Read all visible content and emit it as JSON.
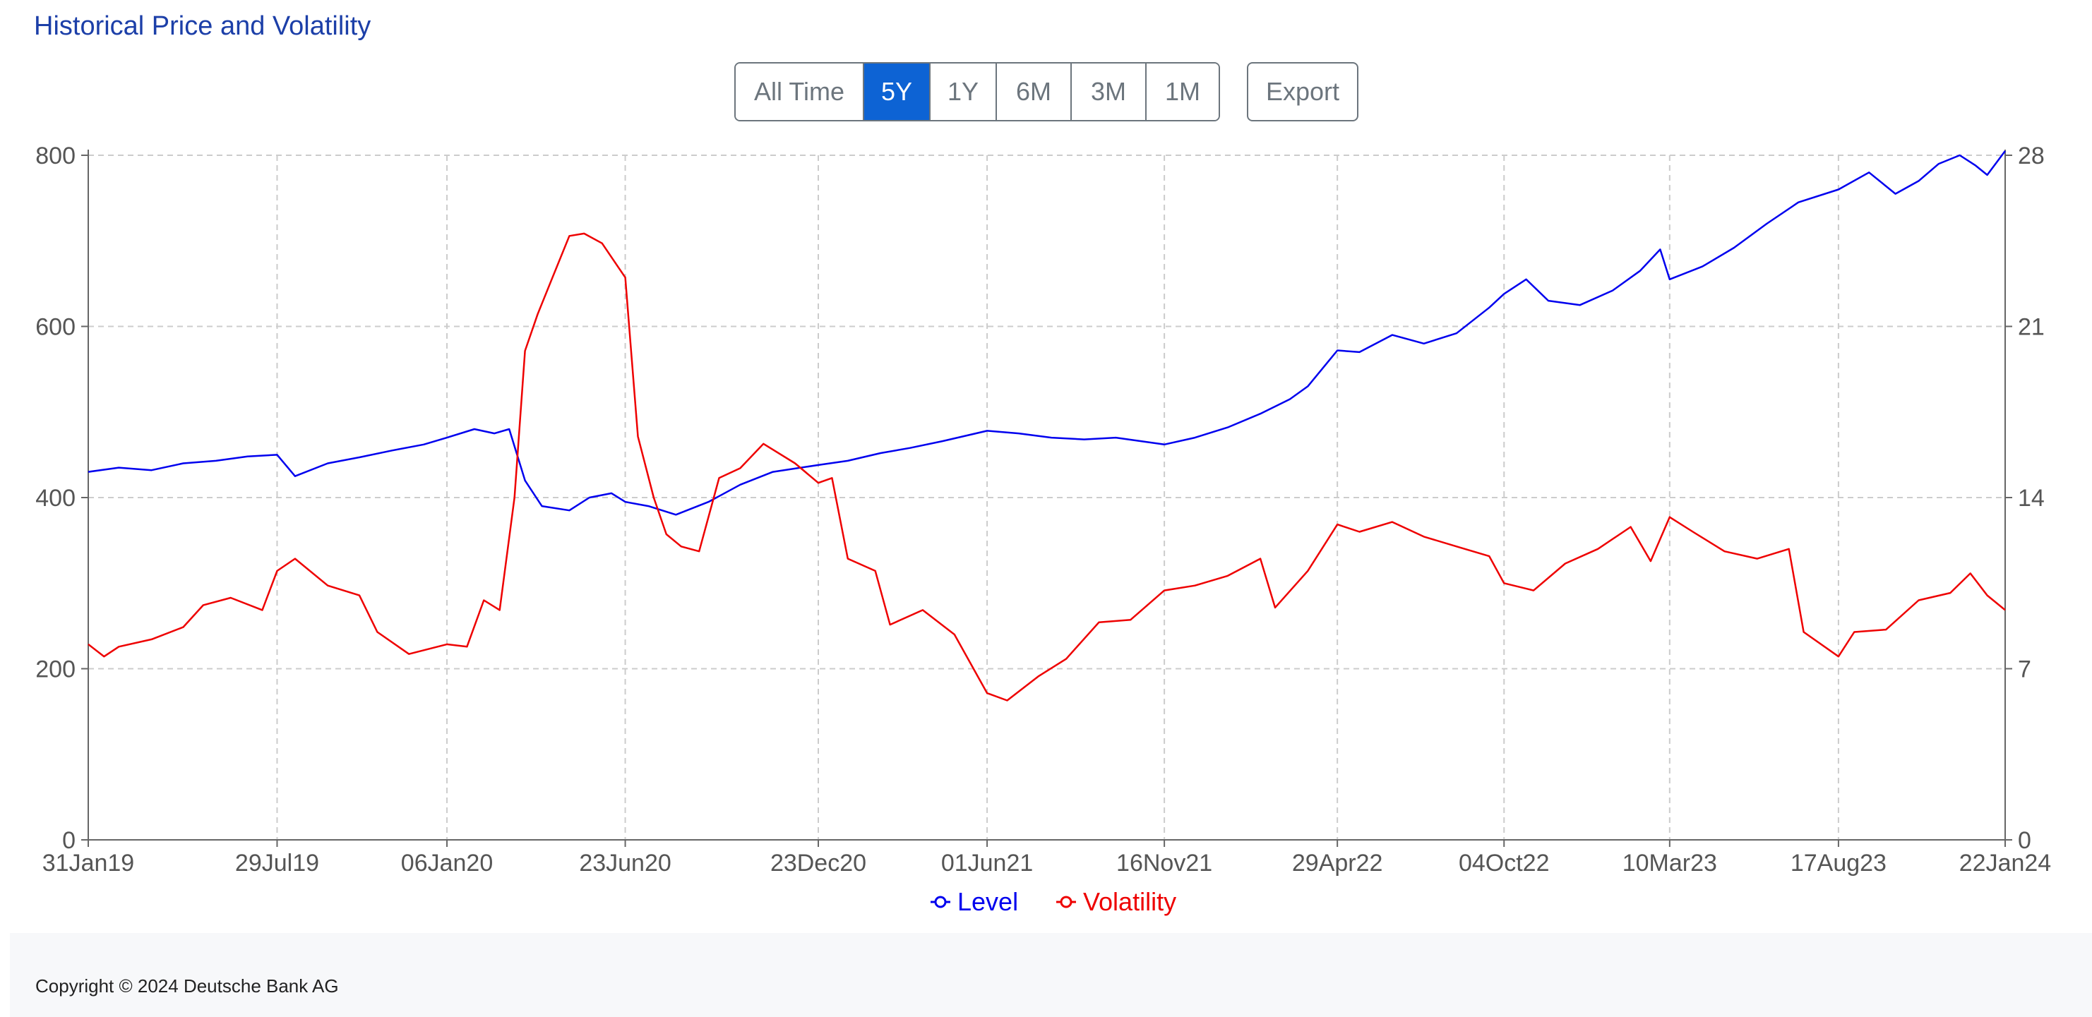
{
  "page": {
    "title": "Historical Price and Volatility"
  },
  "toolbar": {
    "ranges": [
      {
        "label": "All Time",
        "active": false
      },
      {
        "label": "5Y",
        "active": true
      },
      {
        "label": "1Y",
        "active": false
      },
      {
        "label": "6M",
        "active": false
      },
      {
        "label": "3M",
        "active": false
      },
      {
        "label": "1M",
        "active": false
      }
    ],
    "export_label": "Export"
  },
  "chart_data": {
    "type": "line",
    "title": "",
    "xlabel": "",
    "ylabel": "",
    "y2label": "",
    "x_ticks": [
      "31Jan19",
      "29Jul19",
      "06Jan20",
      "23Jun20",
      "23Dec20",
      "01Jun21",
      "16Nov21",
      "29Apr22",
      "04Oct22",
      "10Mar23",
      "17Aug23",
      "22Jan24"
    ],
    "xlim": [
      "2019-01-31",
      "2024-01-22"
    ],
    "ylim": [
      0,
      800
    ],
    "y_ticks": [
      0,
      200,
      400,
      600,
      800
    ],
    "y2lim": [
      0,
      28
    ],
    "y2_ticks": [
      0,
      7,
      14,
      21,
      28
    ],
    "grid": true,
    "legend_position": "bottom-center",
    "series": [
      {
        "name": "Level",
        "axis": "left",
        "color": "#0000ee",
        "points": [
          [
            "2019-01-31",
            430
          ],
          [
            "2019-03-01",
            435
          ],
          [
            "2019-04-01",
            432
          ],
          [
            "2019-05-01",
            440
          ],
          [
            "2019-06-01",
            443
          ],
          [
            "2019-07-01",
            448
          ],
          [
            "2019-07-29",
            450
          ],
          [
            "2019-08-15",
            425
          ],
          [
            "2019-09-15",
            440
          ],
          [
            "2019-10-15",
            447
          ],
          [
            "2019-11-15",
            455
          ],
          [
            "2019-12-15",
            462
          ],
          [
            "2020-01-06",
            470
          ],
          [
            "2020-02-01",
            480
          ],
          [
            "2020-02-20",
            475
          ],
          [
            "2020-03-05",
            480
          ],
          [
            "2020-03-20",
            420
          ],
          [
            "2020-04-05",
            390
          ],
          [
            "2020-05-01",
            385
          ],
          [
            "2020-05-20",
            400
          ],
          [
            "2020-06-10",
            405
          ],
          [
            "2020-06-23",
            395
          ],
          [
            "2020-07-15",
            390
          ],
          [
            "2020-08-10",
            380
          ],
          [
            "2020-09-10",
            395
          ],
          [
            "2020-10-10",
            415
          ],
          [
            "2020-11-10",
            430
          ],
          [
            "2020-12-23",
            438
          ],
          [
            "2021-01-20",
            443
          ],
          [
            "2021-02-20",
            452
          ],
          [
            "2021-03-20",
            458
          ],
          [
            "2021-04-20",
            466
          ],
          [
            "2021-06-01",
            478
          ],
          [
            "2021-07-01",
            475
          ],
          [
            "2021-08-01",
            470
          ],
          [
            "2021-09-01",
            468
          ],
          [
            "2021-10-01",
            470
          ],
          [
            "2021-11-16",
            462
          ],
          [
            "2021-12-15",
            470
          ],
          [
            "2022-01-15",
            482
          ],
          [
            "2022-02-15",
            498
          ],
          [
            "2022-03-15",
            515
          ],
          [
            "2022-04-01",
            530
          ],
          [
            "2022-04-29",
            572
          ],
          [
            "2022-05-20",
            570
          ],
          [
            "2022-06-20",
            590
          ],
          [
            "2022-07-20",
            580
          ],
          [
            "2022-08-20",
            592
          ],
          [
            "2022-09-20",
            622
          ],
          [
            "2022-10-04",
            638
          ],
          [
            "2022-10-25",
            655
          ],
          [
            "2022-11-15",
            630
          ],
          [
            "2022-12-15",
            625
          ],
          [
            "2023-01-15",
            642
          ],
          [
            "2023-02-10",
            665
          ],
          [
            "2023-03-01",
            690
          ],
          [
            "2023-03-10",
            655
          ],
          [
            "2023-04-10",
            670
          ],
          [
            "2023-05-10",
            692
          ],
          [
            "2023-06-10",
            720
          ],
          [
            "2023-07-10",
            745
          ],
          [
            "2023-08-17",
            760
          ],
          [
            "2023-09-15",
            780
          ],
          [
            "2023-10-10",
            755
          ],
          [
            "2023-11-01",
            770
          ],
          [
            "2023-11-20",
            790
          ],
          [
            "2023-12-10",
            800
          ],
          [
            "2023-12-25",
            788
          ],
          [
            "2024-01-05",
            777
          ],
          [
            "2024-01-22",
            805
          ]
        ]
      },
      {
        "name": "Volatility",
        "axis": "right",
        "color": "#ee0000",
        "points": [
          [
            "2019-01-31",
            8.0
          ],
          [
            "2019-02-15",
            7.5
          ],
          [
            "2019-03-01",
            7.9
          ],
          [
            "2019-04-01",
            8.2
          ],
          [
            "2019-05-01",
            8.7
          ],
          [
            "2019-05-20",
            9.6
          ],
          [
            "2019-06-15",
            9.9
          ],
          [
            "2019-07-15",
            9.4
          ],
          [
            "2019-07-29",
            11.0
          ],
          [
            "2019-08-15",
            11.5
          ],
          [
            "2019-09-15",
            10.4
          ],
          [
            "2019-10-15",
            10.0
          ],
          [
            "2019-11-01",
            8.5
          ],
          [
            "2019-12-01",
            7.6
          ],
          [
            "2020-01-06",
            8.0
          ],
          [
            "2020-01-25",
            7.9
          ],
          [
            "2020-02-10",
            9.8
          ],
          [
            "2020-02-25",
            9.4
          ],
          [
            "2020-03-10",
            14.0
          ],
          [
            "2020-03-20",
            20.0
          ],
          [
            "2020-04-01",
            21.5
          ],
          [
            "2020-04-15",
            23.0
          ],
          [
            "2020-05-01",
            24.7
          ],
          [
            "2020-05-15",
            24.8
          ],
          [
            "2020-06-01",
            24.4
          ],
          [
            "2020-06-23",
            23.0
          ],
          [
            "2020-07-05",
            16.5
          ],
          [
            "2020-07-20",
            14.0
          ],
          [
            "2020-08-01",
            12.5
          ],
          [
            "2020-08-15",
            12.0
          ],
          [
            "2020-09-01",
            11.8
          ],
          [
            "2020-09-20",
            14.8
          ],
          [
            "2020-10-10",
            15.2
          ],
          [
            "2020-11-01",
            16.2
          ],
          [
            "2020-12-01",
            15.4
          ],
          [
            "2020-12-23",
            14.6
          ],
          [
            "2021-01-05",
            14.8
          ],
          [
            "2021-01-20",
            11.5
          ],
          [
            "2021-02-15",
            11.0
          ],
          [
            "2021-03-01",
            8.8
          ],
          [
            "2021-04-01",
            9.4
          ],
          [
            "2021-05-01",
            8.4
          ],
          [
            "2021-06-01",
            6.0
          ],
          [
            "2021-06-20",
            5.7
          ],
          [
            "2021-07-20",
            6.7
          ],
          [
            "2021-08-15",
            7.4
          ],
          [
            "2021-09-15",
            8.9
          ],
          [
            "2021-10-15",
            9.0
          ],
          [
            "2021-11-16",
            10.2
          ],
          [
            "2021-12-15",
            10.4
          ],
          [
            "2022-01-15",
            10.8
          ],
          [
            "2022-02-15",
            11.5
          ],
          [
            "2022-03-01",
            9.5
          ],
          [
            "2022-04-01",
            11.0
          ],
          [
            "2022-04-29",
            12.9
          ],
          [
            "2022-05-20",
            12.6
          ],
          [
            "2022-06-20",
            13.0
          ],
          [
            "2022-07-20",
            12.4
          ],
          [
            "2022-08-20",
            12.0
          ],
          [
            "2022-09-20",
            11.6
          ],
          [
            "2022-10-04",
            10.5
          ],
          [
            "2022-11-01",
            10.2
          ],
          [
            "2022-12-01",
            11.3
          ],
          [
            "2023-01-01",
            11.9
          ],
          [
            "2023-02-01",
            12.8
          ],
          [
            "2023-02-20",
            11.4
          ],
          [
            "2023-03-10",
            13.2
          ],
          [
            "2023-04-01",
            12.6
          ],
          [
            "2023-05-01",
            11.8
          ],
          [
            "2023-06-01",
            11.5
          ],
          [
            "2023-07-01",
            11.9
          ],
          [
            "2023-07-15",
            8.5
          ],
          [
            "2023-08-17",
            7.5
          ],
          [
            "2023-09-01",
            8.5
          ],
          [
            "2023-10-01",
            8.6
          ],
          [
            "2023-11-01",
            9.8
          ],
          [
            "2023-12-01",
            10.1
          ],
          [
            "2023-12-20",
            10.9
          ],
          [
            "2024-01-05",
            10.0
          ],
          [
            "2024-01-22",
            9.4
          ]
        ]
      }
    ]
  },
  "legend": {
    "items": [
      "Level",
      "Volatility"
    ]
  },
  "footer": {
    "copyright": "Copyright © 2024 Deutsche Bank AG"
  }
}
